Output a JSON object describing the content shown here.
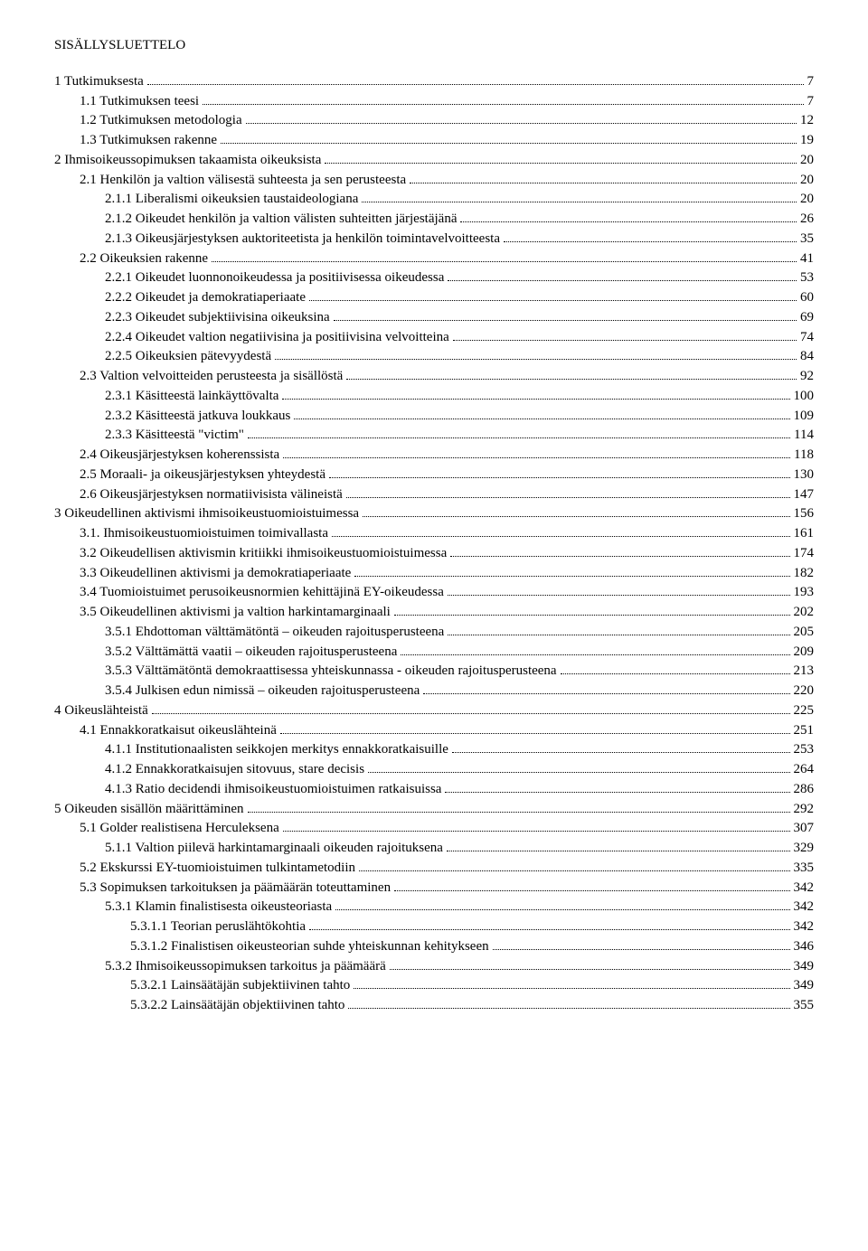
{
  "heading": "SISÄLLYSLUETTELO",
  "toc": [
    {
      "indent": 0,
      "label": "1   Tutkimuksesta",
      "page": "7"
    },
    {
      "indent": 1,
      "label": "1.1   Tutkimuksen teesi",
      "page": "7"
    },
    {
      "indent": 1,
      "label": "1.2   Tutkimuksen metodologia",
      "page": "12"
    },
    {
      "indent": 1,
      "label": "1.3   Tutkimuksen rakenne",
      "page": "19"
    },
    {
      "indent": 0,
      "label": "2   Ihmisoikeussopimuksen takaamista oikeuksista",
      "page": "20"
    },
    {
      "indent": 1,
      "label": "2.1   Henkilön ja valtion välisestä suhteesta ja sen perusteesta",
      "page": "20"
    },
    {
      "indent": 2,
      "label": "2.1.1   Liberalismi oikeuksien taustaideologiana",
      "page": "20"
    },
    {
      "indent": 2,
      "label": "2.1.2   Oikeudet henkilön ja valtion välisten suhteitten järjestäjänä",
      "page": "26"
    },
    {
      "indent": 2,
      "label": "2.1.3   Oikeusjärjestyksen auktoriteetista ja henkilön toimintavelvoitteesta",
      "page": "35"
    },
    {
      "indent": 1,
      "label": "2.2   Oikeuksien rakenne",
      "page": "41"
    },
    {
      "indent": 2,
      "label": "2.2.1   Oikeudet luonnonoikeudessa ja positiivisessa oikeudessa",
      "page": "53"
    },
    {
      "indent": 2,
      "label": "2.2.2   Oikeudet ja demokratiaperiaate",
      "page": "60"
    },
    {
      "indent": 2,
      "label": "2.2.3   Oikeudet subjektiivisina oikeuksina",
      "page": "69"
    },
    {
      "indent": 2,
      "label": "2.2.4   Oikeudet valtion negatiivisina ja positiivisina velvoitteina",
      "page": "74"
    },
    {
      "indent": 2,
      "label": "2.2.5   Oikeuksien pätevyydestä",
      "page": "84"
    },
    {
      "indent": 1,
      "label": "2.3   Valtion velvoitteiden perusteesta ja sisällöstä",
      "page": "92"
    },
    {
      "indent": 2,
      "label": "2.3.1   Käsitteestä lainkäyttövalta",
      "page": "100"
    },
    {
      "indent": 2,
      "label": "2.3.2   Käsitteestä jatkuva loukkaus",
      "page": "109"
    },
    {
      "indent": 2,
      "label": "2.3.3   Käsitteestä \"victim\"",
      "page": "114"
    },
    {
      "indent": 1,
      "label": "2.4   Oikeusjärjestyksen koherenssista",
      "page": "118"
    },
    {
      "indent": 1,
      "label": "2.5   Moraali- ja oikeusjärjestyksen yhteydestä",
      "page": "130"
    },
    {
      "indent": 1,
      "label": "2.6   Oikeusjärjestyksen normatiivisista välineistä",
      "page": "147"
    },
    {
      "indent": 0,
      "label": "3   Oikeudellinen aktivismi ihmisoikeustuomioistuimessa",
      "page": "156"
    },
    {
      "indent": 1,
      "label": "3.1.   Ihmisoikeustuomioistuimen toimivallasta",
      "page": "161"
    },
    {
      "indent": 1,
      "label": "3.2   Oikeudellisen aktivismin kritiikki ihmisoikeustuomioistuimessa",
      "page": "174"
    },
    {
      "indent": 1,
      "label": "3.3   Oikeudellinen aktivismi ja demokratiaperiaate",
      "page": "182"
    },
    {
      "indent": 1,
      "label": "3.4   Tuomioistuimet perusoikeusnormien kehittäjinä EY-oikeudessa",
      "page": "193"
    },
    {
      "indent": 1,
      "label": "3.5   Oikeudellinen aktivismi ja valtion harkintamarginaali",
      "page": "202"
    },
    {
      "indent": 2,
      "label": "3.5.1   Ehdottoman välttämätöntä – oikeuden rajoitusperusteena",
      "page": "205"
    },
    {
      "indent": 2,
      "label": "3.5.2   Välttämättä vaatii – oikeuden rajoitusperusteena",
      "page": "209"
    },
    {
      "indent": 2,
      "label": "3.5.3   Välttämätöntä demokraattisessa yhteiskunnassa - oikeuden rajoitusperusteena",
      "page": "213"
    },
    {
      "indent": 2,
      "label": "3.5.4   Julkisen edun nimissä – oikeuden rajoitusperusteena",
      "page": "220"
    },
    {
      "indent": 0,
      "label": "4   Oikeuslähteistä",
      "page": "225"
    },
    {
      "indent": 1,
      "label": "4.1   Ennakkoratkaisut oikeuslähteinä",
      "page": "251"
    },
    {
      "indent": 2,
      "label": "4.1.1   Institutionaalisten seikkojen merkitys ennakkoratkaisuille",
      "page": "253"
    },
    {
      "indent": 2,
      "label": "4.1.2   Ennakkoratkaisujen sitovuus, stare decisis",
      "page": "264"
    },
    {
      "indent": 2,
      "label": "4.1.3   Ratio decidendi ihmisoikeustuomioistuimen ratkaisuissa",
      "page": "286"
    },
    {
      "indent": 0,
      "label": "5   Oikeuden sisällön määrittäminen",
      "page": "292"
    },
    {
      "indent": 1,
      "label": "5.1   Golder realistisena Herculeksena",
      "page": "307"
    },
    {
      "indent": 2,
      "label": "5.1.1   Valtion piilevä harkintamarginaali oikeuden rajoituksena",
      "page": "329"
    },
    {
      "indent": 1,
      "label": "5.2   Ekskurssi EY-tuomioistuimen tulkintametodiin",
      "page": "335"
    },
    {
      "indent": 1,
      "label": "5.3   Sopimuksen tarkoituksen ja päämäärän toteuttaminen",
      "page": "342"
    },
    {
      "indent": 2,
      "label": "5.3.1   Klamin finalistisesta oikeusteoriasta",
      "page": "342"
    },
    {
      "indent": 3,
      "label": "5.3.1.1  Teorian peruslähtökohtia",
      "page": "342"
    },
    {
      "indent": 3,
      "label": "5.3.1.2  Finalistisen oikeusteorian suhde yhteiskunnan kehitykseen",
      "page": "346"
    },
    {
      "indent": 2,
      "label": "5.3.2   Ihmisoikeussopimuksen tarkoitus ja päämäärä",
      "page": "349"
    },
    {
      "indent": 3,
      "label": "5.3.2.1  Lainsäätäjän subjektiivinen tahto",
      "page": "349"
    },
    {
      "indent": 3,
      "label": "5.3.2.2  Lainsäätäjän objektiivinen tahto",
      "page": "355"
    }
  ]
}
